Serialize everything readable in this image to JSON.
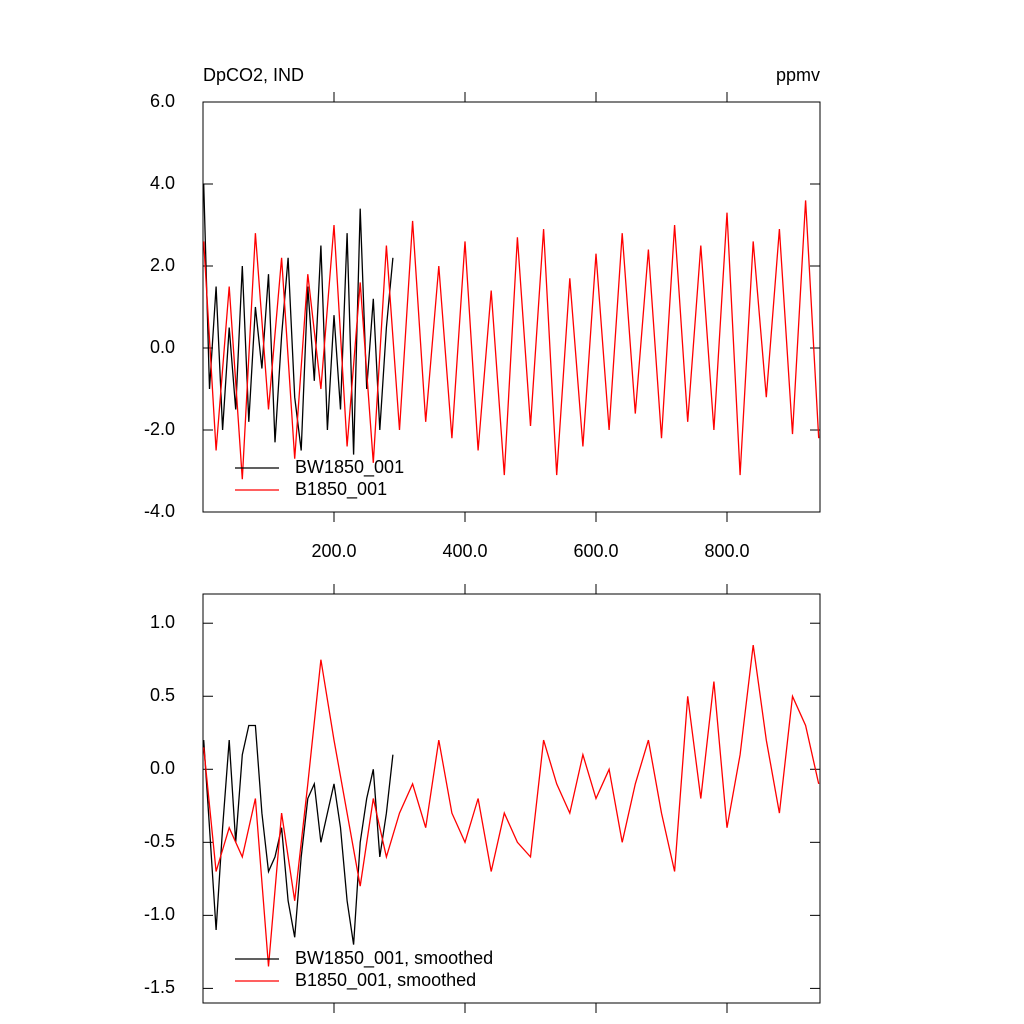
{
  "chart_data": [
    {
      "type": "line",
      "title": "DpCO2, IND",
      "units": "ppmv",
      "legend": "lower left",
      "xlim": [
        0,
        942
      ],
      "xticks": [
        {
          "value": 200,
          "label": "200.0"
        },
        {
          "value": 400,
          "label": "400.0"
        },
        {
          "value": 600,
          "label": "600.0"
        },
        {
          "value": 800,
          "label": "800.0"
        }
      ],
      "ylim": [
        -4,
        6
      ],
      "yticks": [
        {
          "value": -4,
          "label": "-4.0"
        },
        {
          "value": -2,
          "label": "-2.0"
        },
        {
          "value": 0,
          "label": "0.0"
        },
        {
          "value": 2,
          "label": "2.0"
        },
        {
          "value": 4,
          "label": "4.0"
        },
        {
          "value": 6,
          "label": "6.0"
        }
      ],
      "series": [
        {
          "name": "BW1850_001",
          "color": "#000000",
          "x": [
            1,
            10,
            20,
            30,
            40,
            50,
            60,
            70,
            80,
            90,
            100,
            110,
            120,
            130,
            140,
            150,
            160,
            170,
            180,
            190,
            200,
            210,
            220,
            230,
            240,
            250,
            260,
            270,
            280,
            290
          ],
          "values": [
            4.0,
            -1.0,
            1.5,
            -2.0,
            0.5,
            -1.5,
            2.0,
            -1.8,
            1.0,
            -0.5,
            1.8,
            -2.3,
            0.3,
            2.2,
            -1.2,
            -2.5,
            1.5,
            -0.8,
            2.5,
            -2.0,
            0.8,
            -1.5,
            2.8,
            -2.6,
            3.4,
            -1.0,
            1.2,
            -2.0,
            0.5,
            2.2
          ]
        },
        {
          "name": "B1850_001",
          "color": "#ff0000",
          "x": [
            1,
            20,
            40,
            60,
            80,
            100,
            120,
            140,
            160,
            180,
            200,
            220,
            240,
            260,
            280,
            300,
            320,
            340,
            360,
            380,
            400,
            420,
            440,
            460,
            480,
            500,
            520,
            540,
            560,
            580,
            600,
            620,
            640,
            660,
            680,
            700,
            720,
            740,
            760,
            780,
            800,
            820,
            840,
            860,
            880,
            900,
            920,
            940
          ],
          "values": [
            2.6,
            -2.5,
            1.5,
            -3.2,
            2.8,
            -1.5,
            2.2,
            -2.7,
            1.8,
            -1.0,
            3.0,
            -2.4,
            1.6,
            -2.8,
            2.5,
            -2.0,
            3.1,
            -1.8,
            2.0,
            -2.2,
            2.6,
            -2.5,
            1.4,
            -3.1,
            2.7,
            -1.9,
            2.9,
            -3.1,
            1.7,
            -2.4,
            2.3,
            -2.0,
            2.8,
            -1.6,
            2.4,
            -2.2,
            3.0,
            -1.8,
            2.5,
            -2.0,
            3.3,
            -3.1,
            2.6,
            -1.2,
            2.9,
            -2.1,
            3.6,
            -2.2
          ]
        }
      ]
    },
    {
      "type": "line",
      "legend": "lower left",
      "xlim": [
        0,
        942
      ],
      "ylim": [
        -1.6,
        1.2
      ],
      "yticks": [
        {
          "value": -1.5,
          "label": "-1.5"
        },
        {
          "value": -1,
          "label": "-1.0"
        },
        -0.5,
        {
          "value": 0,
          "label": "0.0"
        },
        0.5,
        {
          "value": 1,
          "label": "1.0"
        }
      ],
      "series": [
        {
          "name": "BW1850_001, smoothed",
          "color": "#000000",
          "x": [
            1,
            10,
            20,
            30,
            40,
            50,
            60,
            70,
            80,
            90,
            100,
            110,
            120,
            130,
            140,
            150,
            160,
            170,
            180,
            190,
            200,
            210,
            220,
            230,
            240,
            250,
            260,
            270,
            280,
            290
          ],
          "values": [
            0.2,
            -0.4,
            -1.1,
            -0.4,
            0.2,
            -0.5,
            0.1,
            0.3,
            0.3,
            -0.3,
            -0.7,
            -0.6,
            -0.4,
            -0.9,
            -1.15,
            -0.6,
            -0.2,
            -0.1,
            -0.5,
            -0.3,
            -0.1,
            -0.4,
            -0.9,
            -1.2,
            -0.5,
            -0.2,
            0.0,
            -0.6,
            -0.3,
            0.1
          ]
        },
        {
          "name": "B1850_001, smoothed",
          "color": "#ff0000",
          "x": [
            1,
            20,
            40,
            60,
            80,
            100,
            120,
            140,
            160,
            180,
            200,
            220,
            240,
            260,
            280,
            300,
            320,
            340,
            360,
            380,
            400,
            420,
            440,
            460,
            480,
            500,
            520,
            540,
            560,
            580,
            600,
            620,
            640,
            660,
            680,
            700,
            720,
            740,
            760,
            780,
            800,
            820,
            840,
            860,
            880,
            900,
            920,
            940
          ],
          "values": [
            0.15,
            -0.7,
            -0.4,
            -0.6,
            -0.2,
            -1.35,
            -0.3,
            -0.9,
            -0.1,
            0.75,
            0.2,
            -0.3,
            -0.8,
            -0.2,
            -0.6,
            -0.3,
            -0.1,
            -0.4,
            0.2,
            -0.3,
            -0.5,
            -0.2,
            -0.7,
            -0.3,
            -0.5,
            -0.6,
            0.2,
            -0.1,
            -0.3,
            0.1,
            -0.2,
            0.0,
            -0.5,
            -0.1,
            0.2,
            -0.3,
            -0.7,
            0.5,
            -0.2,
            0.6,
            -0.4,
            0.1,
            0.85,
            0.2,
            -0.3,
            0.5,
            0.3,
            -0.1
          ]
        }
      ]
    }
  ]
}
